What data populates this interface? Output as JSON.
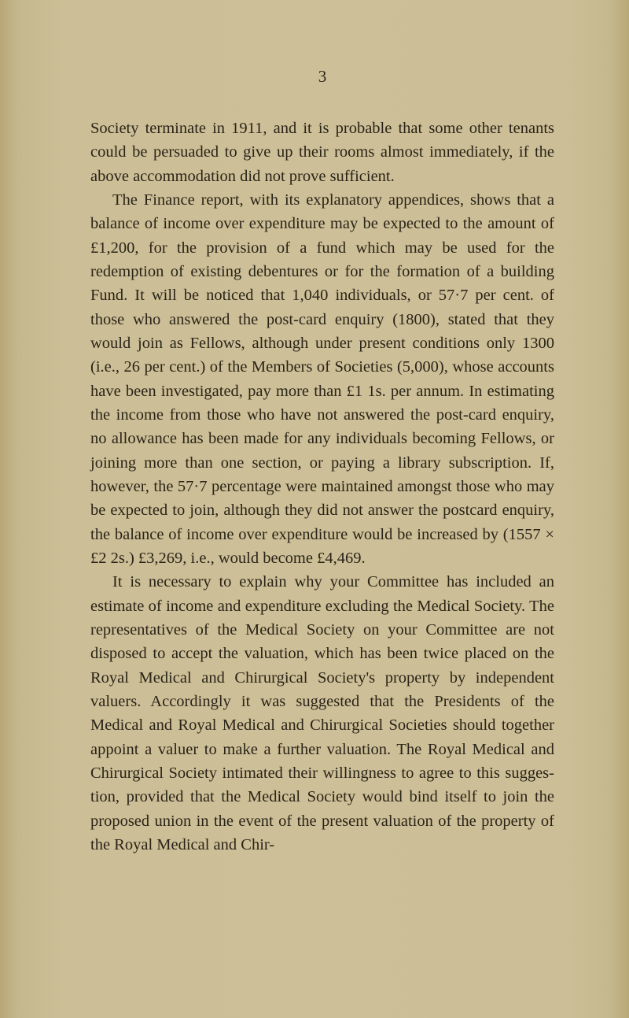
{
  "page": {
    "number": "3",
    "background_color": "#ccbe96",
    "text_color": "#2a2418",
    "font_family": "Georgia, serif",
    "body_fontsize": 20.5,
    "line_height": 1.48,
    "paragraphs": [
      "Society terminate in 1911, and it is probable that some other tenants could be persuaded to give up their rooms almost immediately, if the above accommodation did not prove sufficient.",
      "The Finance report, with its explanatory appendices, shows that a balance of income over expenditure may be expected to the amount of £1,200, for the provision of a fund which may be used for the redemption of existing debentures or for the formation of a building Fund. It will be noticed that 1,040 individuals, or 57·7 per cent. of those who answered the post-card enquiry (1800), stated that they would join as Fellows, although under present conditions only 1300 (i.e., 26 per cent.) of the Members of Societies (5,000), whose accounts have been investigated, pay more than £1 1s. per annum. In estimating the income from those who have not answered the post-card enquiry, no allowance has been made for any individuals becoming Fellows, or joining more than one section, or paying a library subscription. If, however, the 57·7 per­centage were maintained amongst those who may be expected to join, although they did not answer the post­card enquiry, the balance of income over expenditure would be increased by (1557 × £2 2s.) £3,269, i.e., would become £4,469.",
      "It is necessary to explain why your Committee has included an estimate of income and expenditure excluding the Medical Society. The representatives of the Medical Society on your Committee are not disposed to accept the valuation, which has been twice placed on the Royal Medical and Chirurgical Society's property by indepen­dent valuers. Accordingly it was suggested that the Presidents of the Medical and Royal Medical and Chirur­gical Societies should together appoint a valuer to make a further valuation. The Royal Medical and Chirurgical Society intimated their willingness to agree to this sugges­tion, provided that the Medical Society would bind itself to join the proposed union in the event of the present valuation of the property of the Royal Medical and Chir-"
    ]
  }
}
